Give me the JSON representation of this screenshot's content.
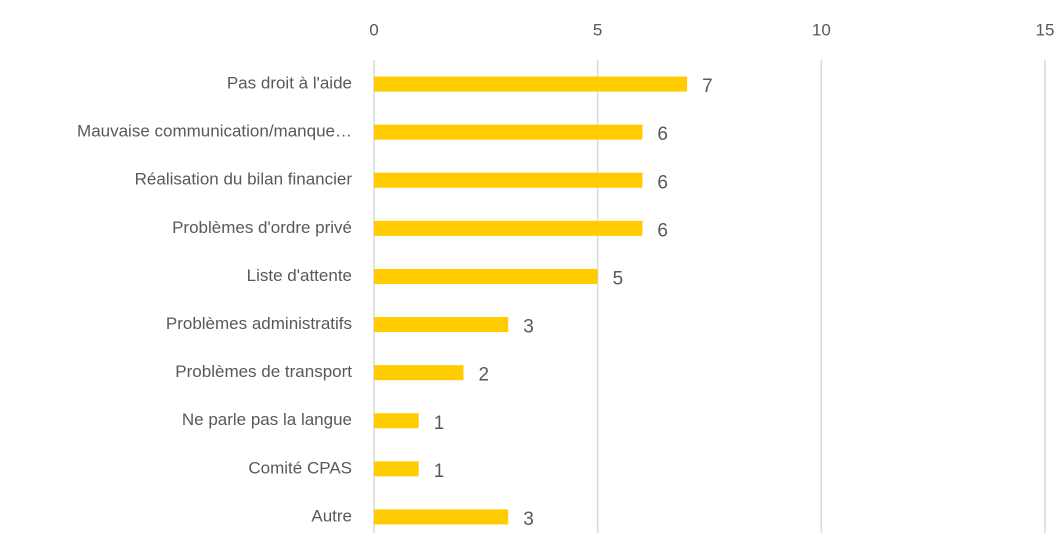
{
  "chart_data": {
    "type": "bar",
    "orientation": "horizontal",
    "categories": [
      "Pas droit à l'aide",
      "Mauvaise communication/manque…",
      "Réalisation du bilan financier",
      "Problèmes d'ordre privé",
      "Liste d'attente",
      "Problèmes administratifs",
      "Problèmes de transport",
      "Ne parle pas la langue",
      "Comité CPAS",
      "Autre"
    ],
    "values": [
      7,
      6,
      6,
      6,
      5,
      3,
      2,
      1,
      1,
      3
    ],
    "color": "#ffcc00",
    "xlim": [
      0,
      15
    ],
    "xticks": [
      0,
      5,
      10,
      15
    ],
    "grid": true
  }
}
